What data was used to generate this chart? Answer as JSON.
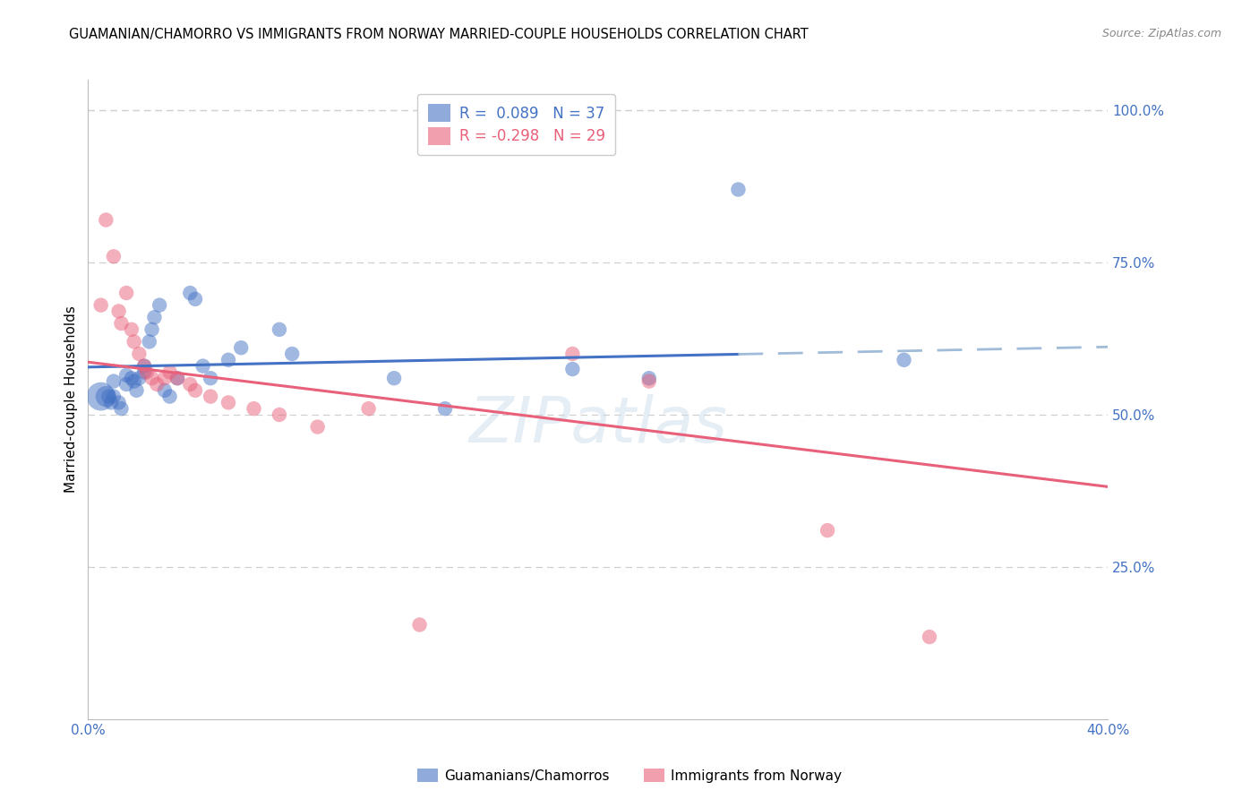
{
  "title": "GUAMANIAN/CHAMORRO VS IMMIGRANTS FROM NORWAY MARRIED-COUPLE HOUSEHOLDS CORRELATION CHART",
  "source": "Source: ZipAtlas.com",
  "ylabel": "Married-couple Households",
  "xlim": [
    0.0,
    0.4
  ],
  "ylim": [
    0.0,
    1.05
  ],
  "xticks": [
    0.0,
    0.1,
    0.2,
    0.3,
    0.4
  ],
  "xticklabels": [
    "0.0%",
    "",
    "",
    "",
    "40.0%"
  ],
  "ytick_positions": [
    0.25,
    0.5,
    0.75,
    1.0
  ],
  "ytick_labels": [
    "25.0%",
    "50.0%",
    "75.0%",
    "100.0%"
  ],
  "blue_R": 0.089,
  "pink_R": -0.298,
  "blue_scatter_x": [
    0.005,
    0.007,
    0.008,
    0.009,
    0.01,
    0.01,
    0.012,
    0.013,
    0.015,
    0.015,
    0.017,
    0.018,
    0.019,
    0.02,
    0.022,
    0.022,
    0.024,
    0.025,
    0.026,
    0.028,
    0.03,
    0.032,
    0.035,
    0.04,
    0.042,
    0.045,
    0.048,
    0.055,
    0.06,
    0.075,
    0.08,
    0.12,
    0.14,
    0.19,
    0.22,
    0.255,
    0.32
  ],
  "blue_scatter_y": [
    0.53,
    0.53,
    0.53,
    0.52,
    0.555,
    0.53,
    0.52,
    0.51,
    0.565,
    0.55,
    0.56,
    0.555,
    0.54,
    0.56,
    0.58,
    0.57,
    0.62,
    0.64,
    0.66,
    0.68,
    0.54,
    0.53,
    0.56,
    0.7,
    0.69,
    0.58,
    0.56,
    0.59,
    0.61,
    0.64,
    0.6,
    0.56,
    0.51,
    0.575,
    0.56,
    0.87,
    0.59
  ],
  "blue_scatter_sizes": [
    150,
    80,
    40,
    40,
    40,
    40,
    40,
    40,
    40,
    40,
    40,
    40,
    40,
    40,
    40,
    40,
    40,
    40,
    40,
    40,
    40,
    40,
    40,
    40,
    40,
    40,
    40,
    40,
    40,
    40,
    40,
    40,
    40,
    40,
    40,
    40,
    40
  ],
  "pink_scatter_x": [
    0.005,
    0.007,
    0.01,
    0.012,
    0.013,
    0.015,
    0.017,
    0.018,
    0.02,
    0.022,
    0.023,
    0.025,
    0.027,
    0.03,
    0.032,
    0.035,
    0.04,
    0.042,
    0.048,
    0.055,
    0.065,
    0.075,
    0.09,
    0.11,
    0.13,
    0.19,
    0.22,
    0.29,
    0.33
  ],
  "pink_scatter_y": [
    0.68,
    0.82,
    0.76,
    0.67,
    0.65,
    0.7,
    0.64,
    0.62,
    0.6,
    0.58,
    0.57,
    0.56,
    0.55,
    0.56,
    0.57,
    0.56,
    0.55,
    0.54,
    0.53,
    0.52,
    0.51,
    0.5,
    0.48,
    0.51,
    0.155,
    0.6,
    0.555,
    0.31,
    0.135
  ],
  "pink_scatter_sizes": [
    40,
    40,
    40,
    40,
    40,
    40,
    40,
    40,
    40,
    40,
    40,
    40,
    40,
    40,
    40,
    40,
    40,
    40,
    40,
    40,
    40,
    40,
    40,
    40,
    40,
    40,
    40,
    40,
    40
  ],
  "blue_line_color": "#4472c4",
  "blue_dash_color": "#a0bcd8",
  "pink_line_color": "#e8607a",
  "grid_color": "#d0d0d0",
  "background_color": "#ffffff",
  "axis_label_color": "#4472c4",
  "scatter_alpha": 0.5,
  "blue_line_solid_end": 0.255,
  "legend_label_blue": "R =  0.089   N = 37",
  "legend_label_pink": "R = -0.298   N = 29",
  "watermark": "ZIPatlas",
  "bottom_legend_blue": "Guamanians/Chamorros",
  "bottom_legend_pink": "Immigrants from Norway"
}
